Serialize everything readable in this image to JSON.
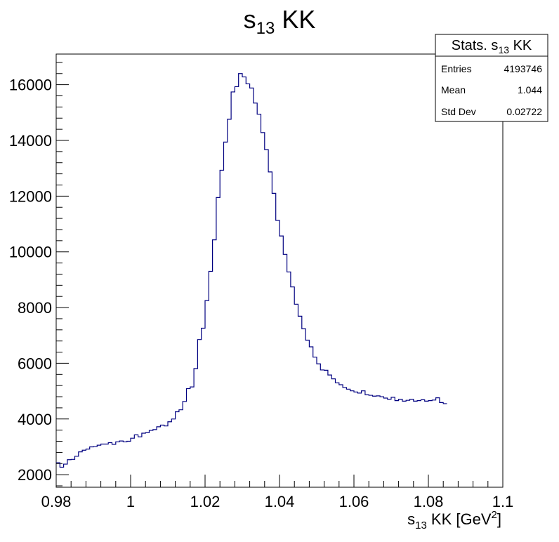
{
  "chart_data": {
    "type": "histogram",
    "title": {
      "main": "s",
      "sub": "13",
      "rest": " KK"
    },
    "xlabel": {
      "main": "s",
      "sub": "13",
      "mid": " KK [GeV",
      "sup": "2",
      "end": "]"
    },
    "ylabel": "",
    "xlim": [
      0.98,
      1.1
    ],
    "ylim": [
      1550,
      17100
    ],
    "bin_width": 0.001,
    "x_ticks": [
      "0.98",
      "1",
      "1.02",
      "1.04",
      "1.06",
      "1.08",
      "1.1"
    ],
    "y_ticks": [
      "2000",
      "4000",
      "6000",
      "8000",
      "10000",
      "12000",
      "14000",
      "16000"
    ],
    "line_color": "#000080",
    "values": [
      2430,
      2270,
      2380,
      2540,
      2550,
      2660,
      2820,
      2880,
      2920,
      3000,
      3010,
      3060,
      3100,
      3100,
      3150,
      3090,
      3180,
      3210,
      3180,
      3200,
      3310,
      3430,
      3360,
      3490,
      3510,
      3590,
      3620,
      3720,
      3780,
      3750,
      3900,
      4000,
      4260,
      4330,
      4630,
      5090,
      5150,
      5810,
      6850,
      7260,
      8250,
      9300,
      10430,
      11950,
      12930,
      13940,
      14760,
      15740,
      15930,
      16400,
      16280,
      16030,
      15880,
      15340,
      14940,
      14280,
      13670,
      12870,
      12100,
      11130,
      10570,
      9910,
      9280,
      8740,
      8120,
      7690,
      7240,
      6830,
      6590,
      6220,
      5980,
      5760,
      5750,
      5580,
      5440,
      5300,
      5230,
      5130,
      5070,
      5010,
      4970,
      4930,
      5010,
      4870,
      4850,
      4820,
      4830,
      4800,
      4750,
      4710,
      4780,
      4660,
      4710,
      4640,
      4670,
      4710,
      4640,
      4660,
      4690,
      4640,
      4660,
      4680,
      4760,
      4590,
      4550
    ],
    "stats": {
      "title": {
        "main": "Stats. s",
        "sub": "13",
        "rest": " KK"
      },
      "rows": [
        {
          "label": "Entries",
          "value": "4193746"
        },
        {
          "label": "Mean",
          "value": "1.044"
        },
        {
          "label": "Std Dev",
          "value": "0.02722"
        }
      ]
    }
  }
}
